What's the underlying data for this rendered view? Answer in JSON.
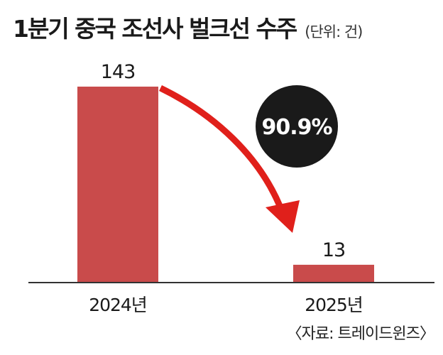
{
  "chart_data": {
    "type": "bar",
    "title": "1분기 중국 조선사 벌크선 수주",
    "unit_label": "(단위: 건)",
    "categories": [
      "2024년",
      "2025년"
    ],
    "values": [
      143,
      13
    ],
    "value_labels": [
      "143",
      "13"
    ],
    "annotation": "90.9%",
    "source": "〈자료: 트레이드윈즈〉",
    "xlabel": "",
    "ylabel": "",
    "grid": false,
    "colors": {
      "bar": "#c94b4b",
      "arrow": "#e0201b",
      "badge": "#1a1a1a",
      "badge_text": "#ffffff",
      "axis": "#333333"
    }
  }
}
